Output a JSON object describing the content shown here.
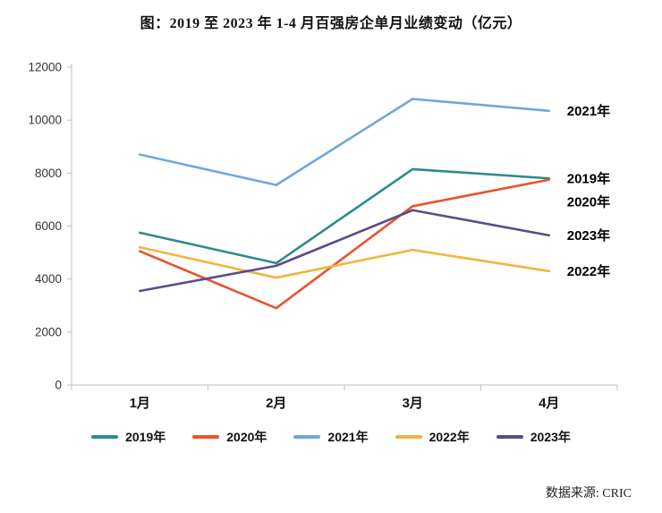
{
  "title": "图：2019 至 2023 年 1-4 月百强房企单月业绩变动（亿元）",
  "source": "数据来源: CRIC",
  "chart_data": {
    "type": "line",
    "title": "图：2019 至 2023 年 1-4 月百强房企单月业绩变动（亿元）",
    "categories": [
      "1月",
      "2月",
      "3月",
      "4月"
    ],
    "series": [
      {
        "name": "2019年",
        "color": "#2e8b8b",
        "values": [
          5750,
          4600,
          8150,
          7800
        ]
      },
      {
        "name": "2020年",
        "color": "#e8532c",
        "values": [
          5050,
          2900,
          6750,
          7750
        ]
      },
      {
        "name": "2021年",
        "color": "#6fa8dc",
        "values": [
          8700,
          7550,
          10800,
          10350
        ]
      },
      {
        "name": "2022年",
        "color": "#f3b33d",
        "values": [
          5200,
          4050,
          5100,
          4300
        ]
      },
      {
        "name": "2023年",
        "color": "#5c4b8a",
        "values": [
          3550,
          4500,
          6600,
          5650
        ]
      }
    ],
    "xlabel": "",
    "ylabel": "",
    "ylim": [
      0,
      12000
    ],
    "ytick_step": 2000,
    "grid": false,
    "legend_position": "bottom",
    "end_labels_order_top_to_bottom": [
      "2021年",
      "2019年",
      "2020年",
      "2023年",
      "2022年"
    ],
    "axis_color": "#bfbfbf",
    "tick_label_color": "#333333"
  }
}
